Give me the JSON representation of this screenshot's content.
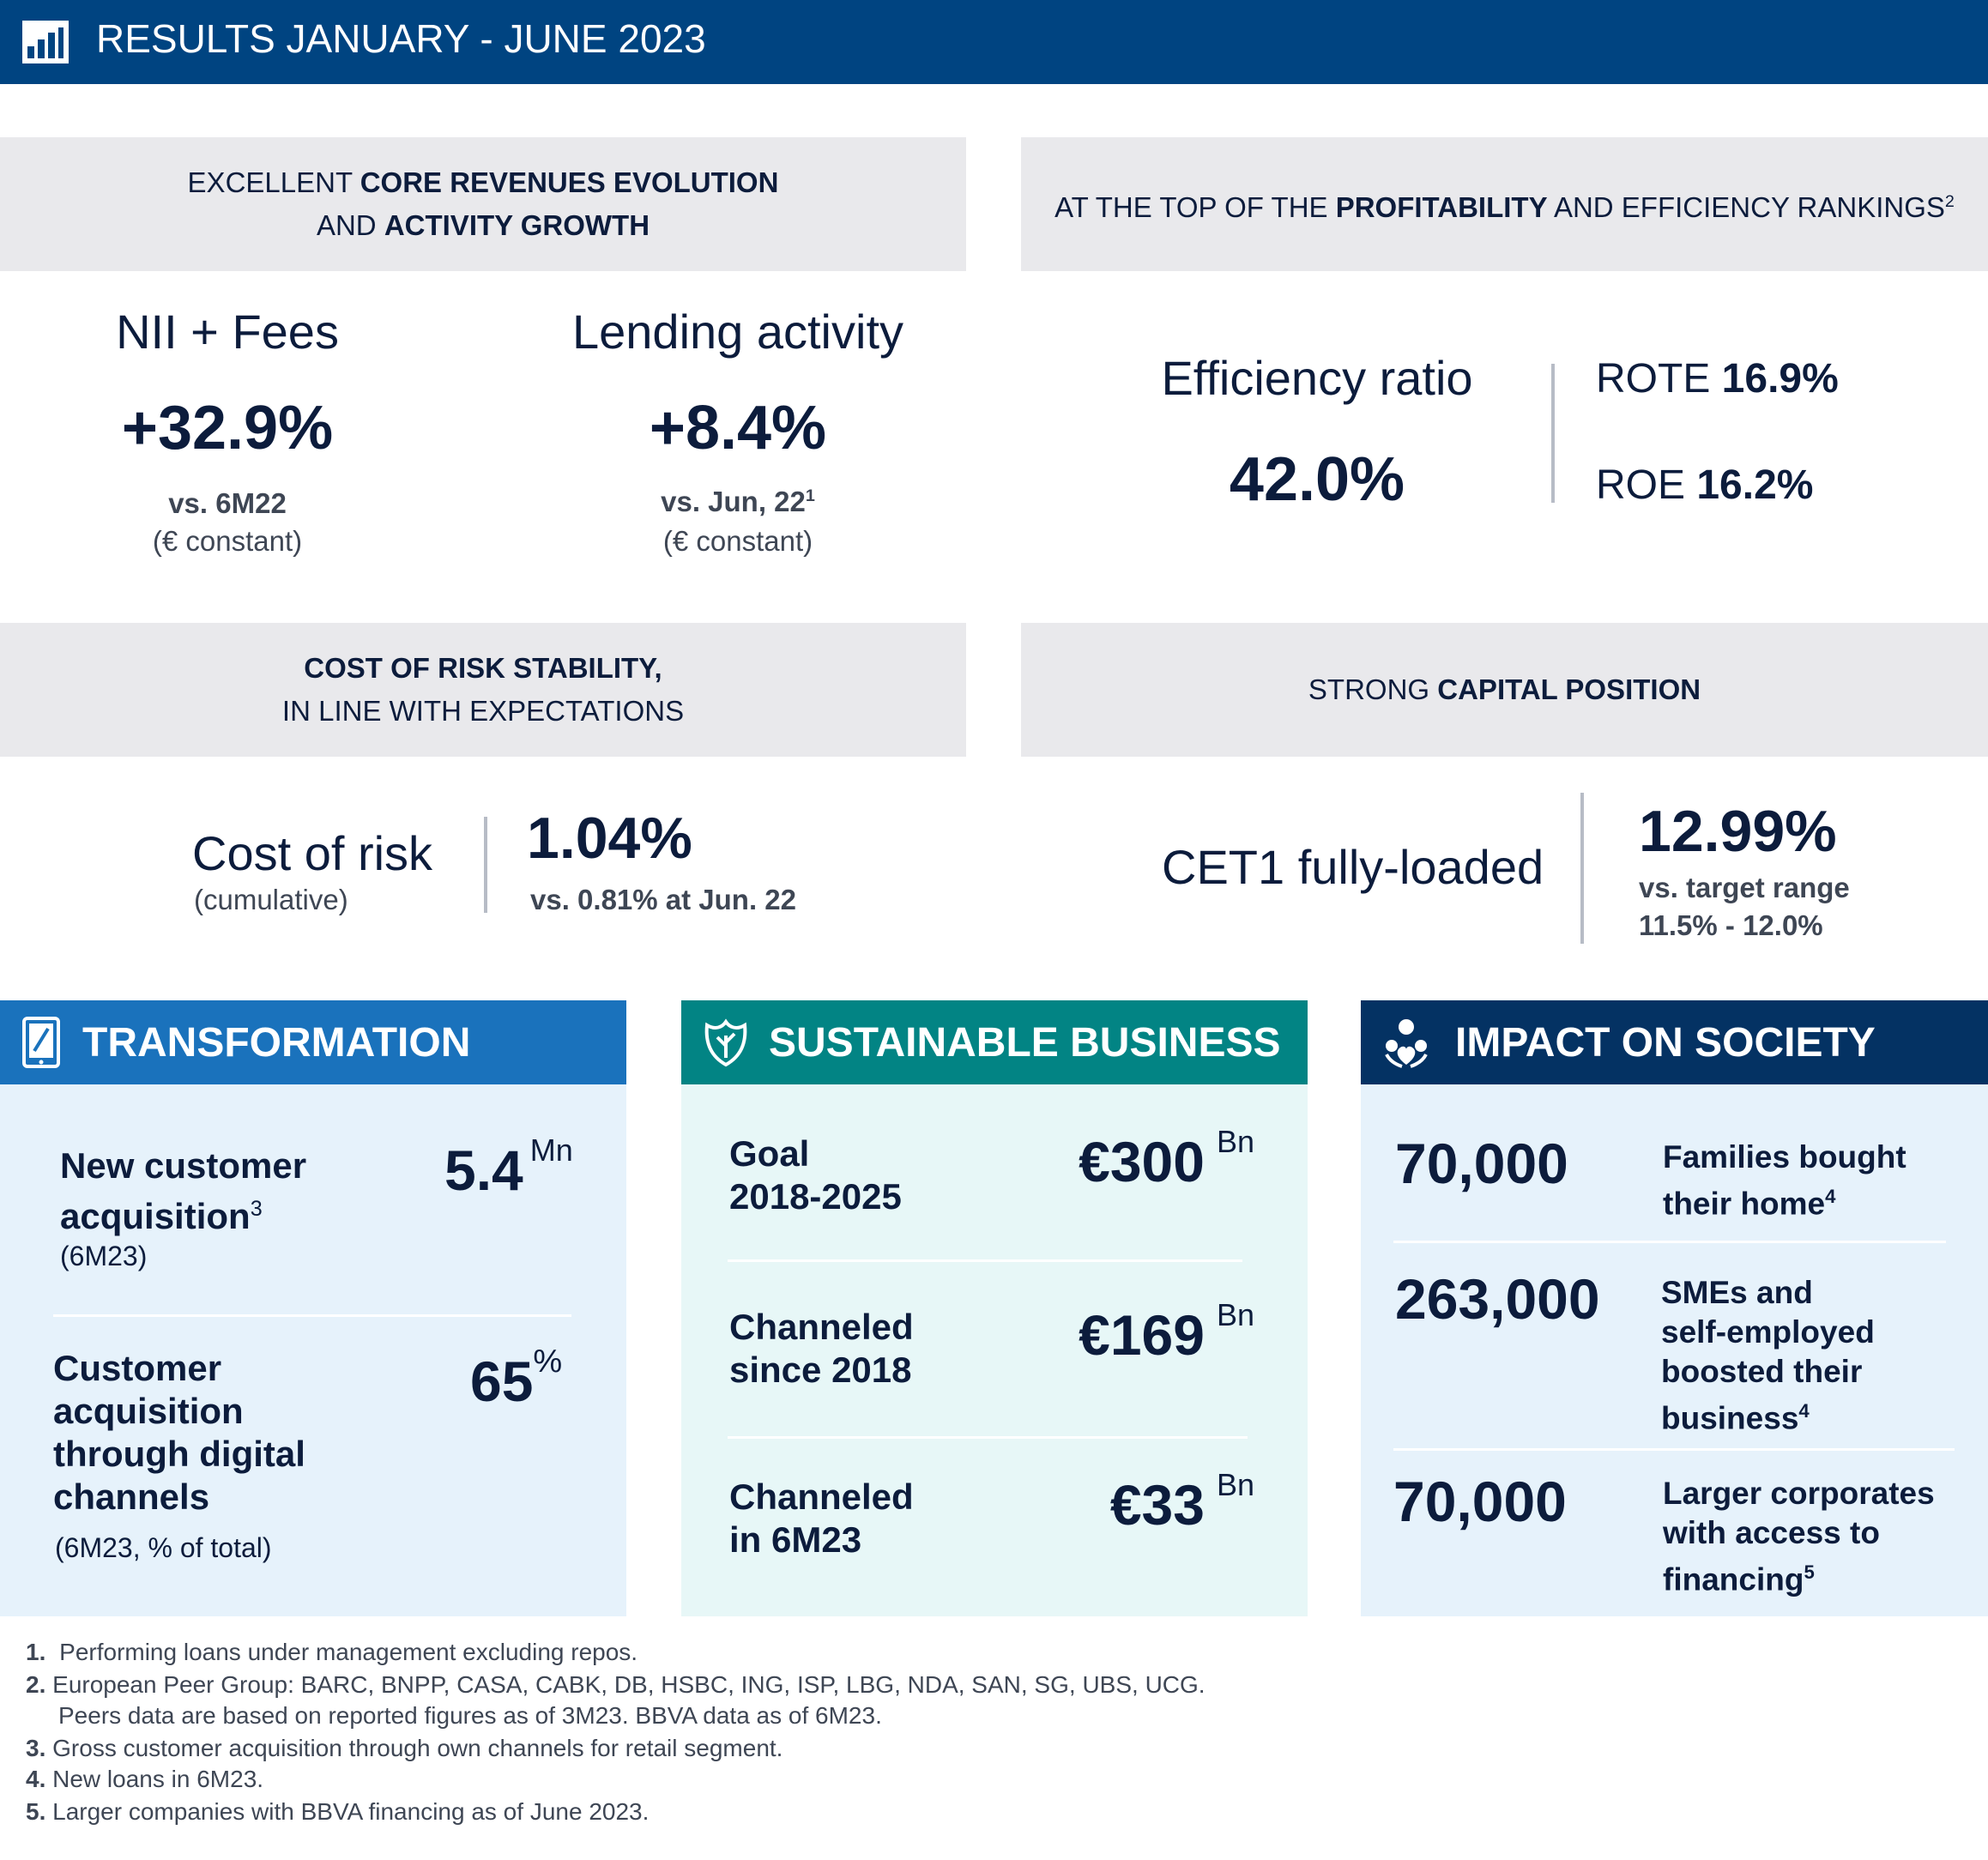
{
  "header": {
    "title": "RESULTS JANUARY - JUNE 2023"
  },
  "panels": {
    "core": {
      "pre": "EXCELLENT ",
      "bold1": "CORE REVENUES EVOLUTION",
      "pre2": "AND ",
      "bold2": "ACTIVITY GROWTH"
    },
    "profit": {
      "pre": "AT THE TOP OF THE ",
      "bold": "PROFITABILITY",
      "post": " AND EFFICIENCY RANKINGS",
      "sup": "2"
    },
    "risk": {
      "bold": "COST OF RISK STABILITY,",
      "line2": "IN LINE WITH EXPECTATIONS"
    },
    "capital": {
      "pre": "STRONG ",
      "bold": "CAPITAL POSITION"
    }
  },
  "metrics": {
    "nii": {
      "label": "NII + Fees",
      "value": "+32.9%",
      "vs": "vs. 6M22",
      "note": "(€ constant)"
    },
    "lending": {
      "label": "Lending activity",
      "value": "+8.4%",
      "vs": "vs. Jun, 22",
      "sup": "1",
      "note": "(€ constant)"
    },
    "efficiency": {
      "label": "Efficiency ratio",
      "value": "42.0%"
    },
    "rote": {
      "label": "ROTE ",
      "value": "16.9%"
    },
    "roe": {
      "label": "ROE ",
      "value": "16.2%"
    },
    "cor": {
      "label": "Cost of risk",
      "note": "(cumulative)",
      "value": "1.04%",
      "vs": "vs. 0.81% at Jun. 22"
    },
    "cet1": {
      "label": "CET1 fully-loaded",
      "value": "12.99%",
      "vs1": "vs. target range",
      "vs2": "11.5% - 12.0%"
    }
  },
  "transformation": {
    "title": "TRANSFORMATION",
    "item1": {
      "label1": "New customer",
      "label2": "acquisition",
      "sup": "3",
      "note": "(6M23)",
      "value": "5.4",
      "unit": "Mn"
    },
    "item2": {
      "label1": "Customer",
      "label2": "acquisition",
      "label3": "through digital",
      "label4": "channels",
      "note": "(6M23, % of total)",
      "value": "65",
      "unit": "%"
    }
  },
  "sustainable": {
    "title": "SUSTAINABLE BUSINESS",
    "items": [
      {
        "label1": "Goal",
        "label2": "2018-2025",
        "value": "€300",
        "unit": "Bn"
      },
      {
        "label1": "Channeled",
        "label2": "since 2018",
        "value": "€169",
        "unit": "Bn"
      },
      {
        "label1": "Channeled",
        "label2": "in 6M23",
        "value": "€33",
        "unit": "Bn"
      }
    ]
  },
  "society": {
    "title": "IMPACT ON SOCIETY",
    "items": [
      {
        "value": "70,000",
        "l1": "Families bought",
        "l2": "their home",
        "sup": "4"
      },
      {
        "value": "263,000",
        "l1": "SMEs and",
        "l2": "self-employed",
        "l3": "boosted their",
        "l4": "business",
        "sup": "4"
      },
      {
        "value": "70,000",
        "l1": "Larger corporates",
        "l2": "with access to",
        "l3": "financing",
        "sup": "5"
      }
    ]
  },
  "footnotes": [
    {
      "num": "1.",
      "text": " Performing loans under management excluding repos."
    },
    {
      "num": "2.",
      "text": " European Peer Group: BARC, BNPP, CASA, CABK, DB, HSBC, ING, ISP, LBG, NDA, SAN, SG, UBS, UCG."
    },
    {
      "num": "",
      "text": "Peers data are based on reported figures as of 3M23. BBVA data as of 6M23."
    },
    {
      "num": "3.",
      "text": " Gross customer acquisition through own channels for retail segment."
    },
    {
      "num": "4.",
      "text": " New loans in 6M23."
    },
    {
      "num": "5.",
      "text": " Larger companies with BBVA financing as of June 2023."
    }
  ],
  "colors": {
    "header": "#004481",
    "transformation": "#1a72bc",
    "sustainable": "#028484",
    "society": "#043263",
    "panel": "#e9e9ec"
  }
}
